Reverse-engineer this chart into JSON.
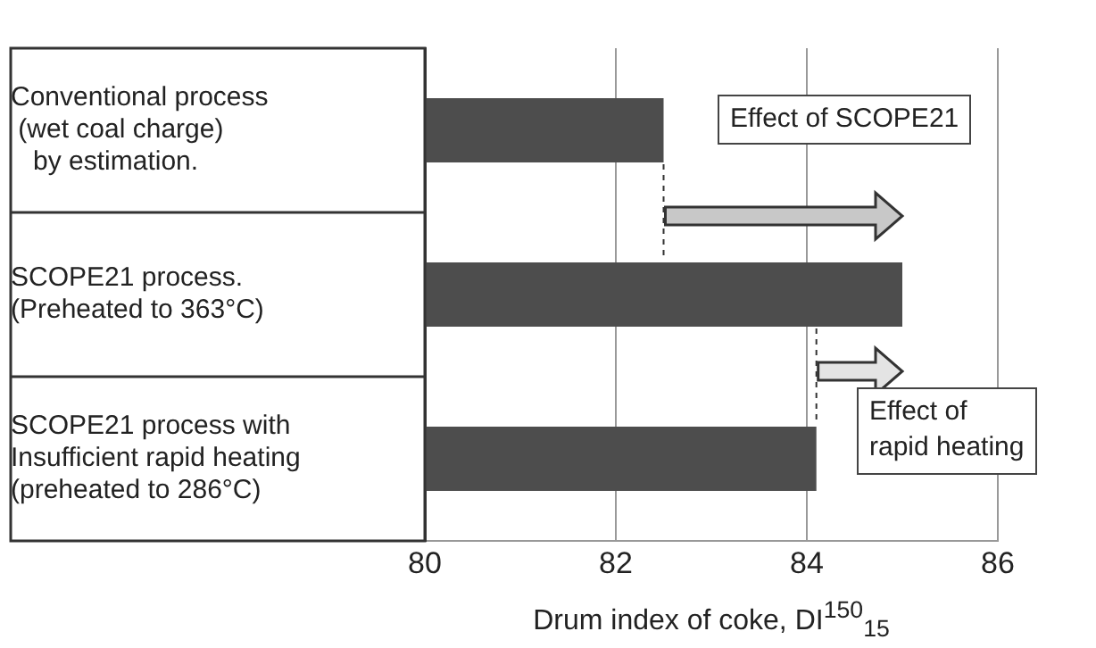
{
  "chart_data": {
    "type": "bar",
    "orientation": "horizontal",
    "xlabel": "Drum index of coke, DI$^{150}$$_{15}$",
    "categories": [
      "Conventional process\n (wet coal charge)\n   by estimation.",
      "SCOPE21 process.\n(Preheated to 363°C)",
      "SCOPE21 process with\nInsufficient rapid heating\n(preheated to 286°C)"
    ],
    "values": [
      82.5,
      85.0,
      84.1
    ],
    "color": "#4d4d4d",
    "xlim": [
      80,
      86
    ],
    "xticks": [
      80,
      82,
      84,
      86
    ],
    "grid": "x",
    "legend": false,
    "annotations": [
      "Effect of SCOPE21",
      "Effect of\nrapid heating"
    ]
  }
}
